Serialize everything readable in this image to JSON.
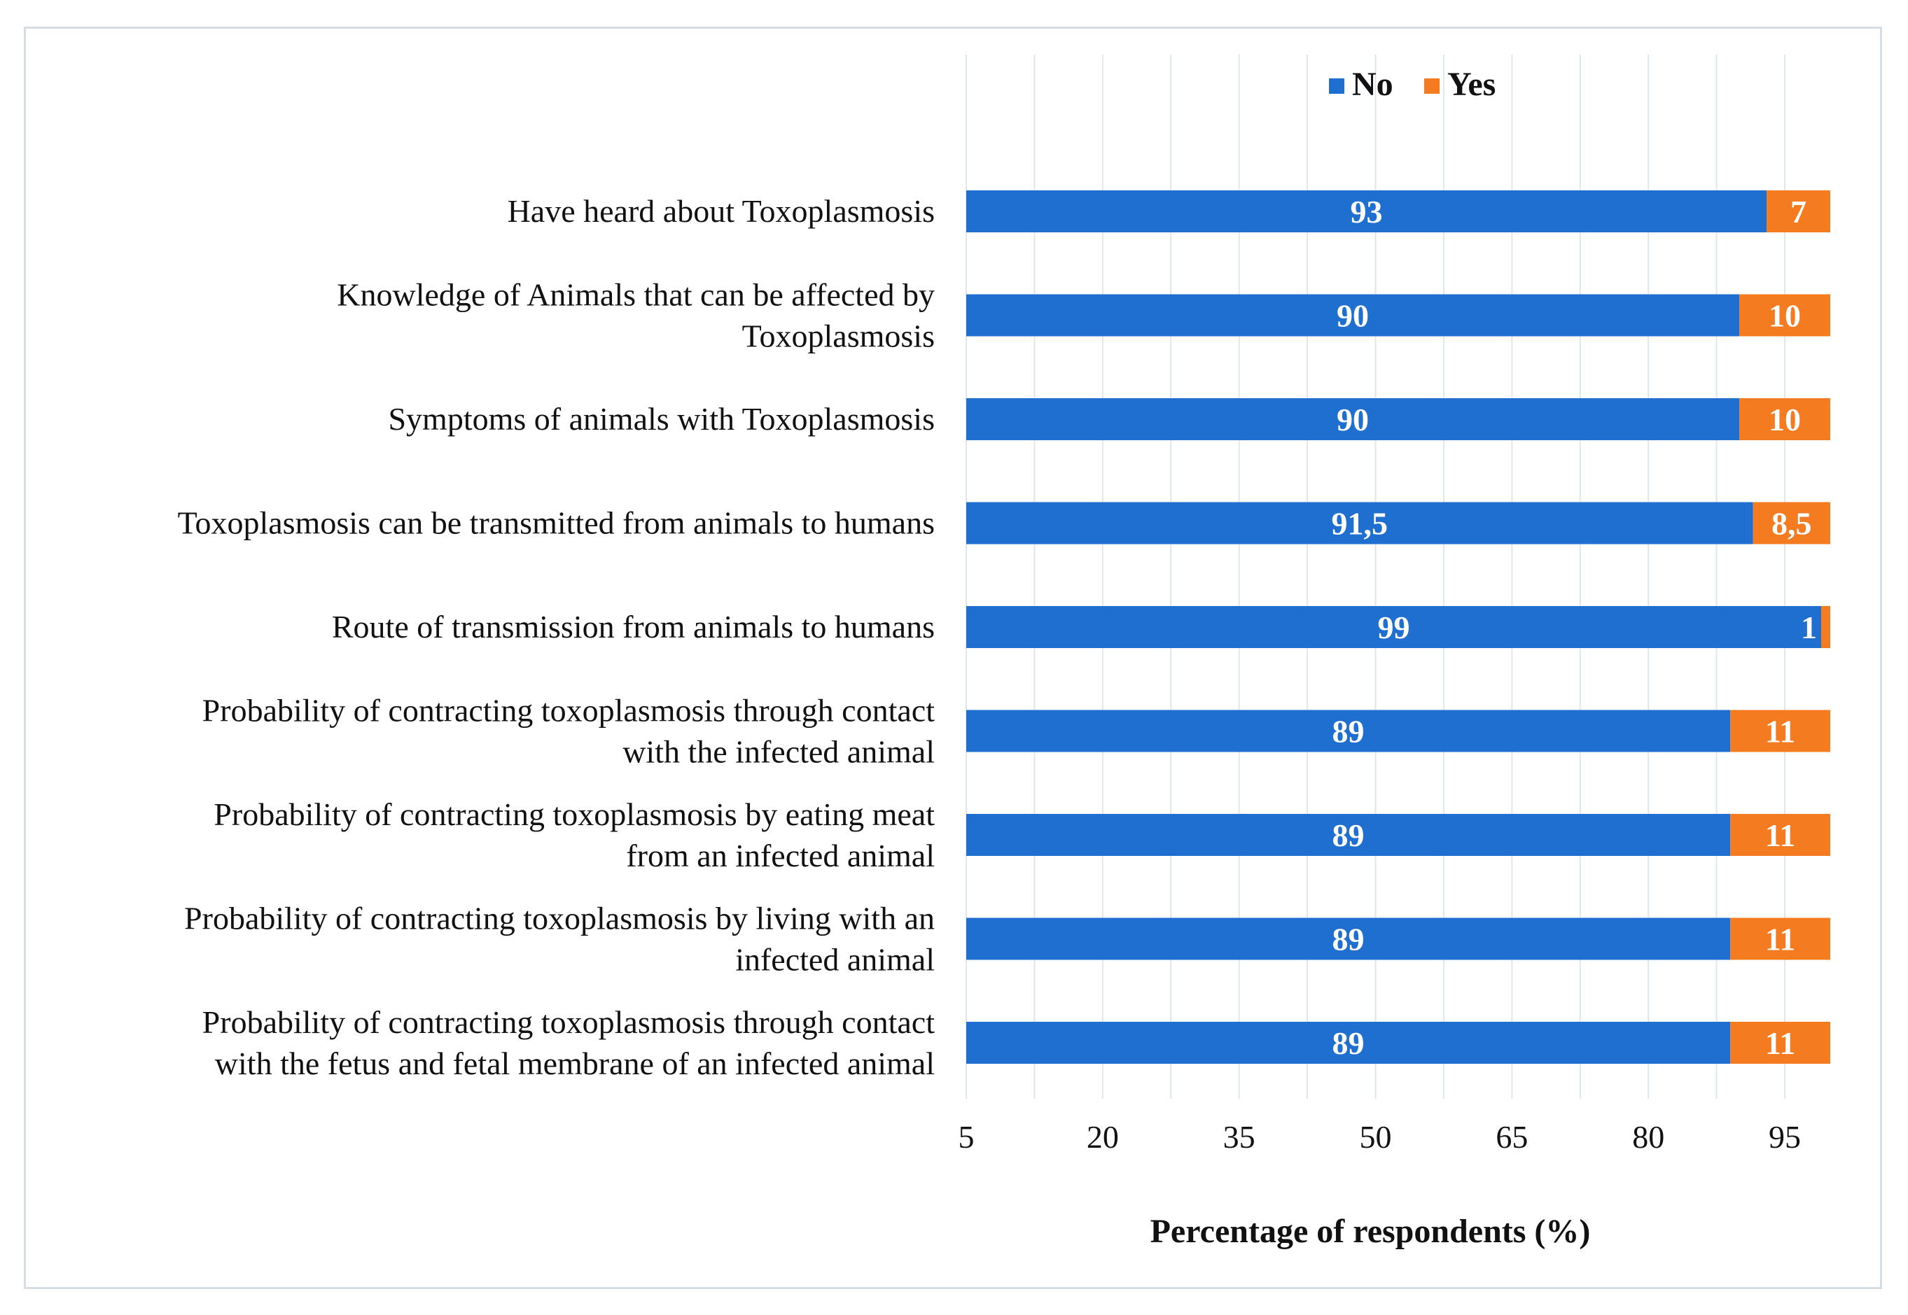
{
  "chart_data": {
    "type": "bar",
    "orientation": "horizontal",
    "stacked": true,
    "categories": [
      "Have heard about Toxoplasmosis",
      "Knowledge of Animals that can be affected by Toxoplasmosis",
      "Symptoms of animals with Toxoplasmosis",
      "Toxoplasmosis can be transmitted from animals to humans",
      "Route of transmission from animals to humans",
      "Probability of contracting toxoplasmosis through contact with the infected animal",
      "Probability of contracting toxoplasmosis by eating meat from an infected animal",
      "Probability of contracting toxoplasmosis by living with an infected animal",
      "Probability of contracting toxoplasmosis through contact with the fetus and fetal membrane of an infected animal"
    ],
    "category_lines": [
      [
        "Have heard about Toxoplasmosis"
      ],
      [
        "Knowledge of Animals that can be affected by",
        "Toxoplasmosis"
      ],
      [
        "Symptoms of animals with Toxoplasmosis"
      ],
      [
        "Toxoplasmosis can be transmitted from animals to humans"
      ],
      [
        "Route of transmission from animals to humans"
      ],
      [
        "Probability of contracting toxoplasmosis through contact",
        "with the infected animal"
      ],
      [
        "Probability of contracting toxoplasmosis by eating meat",
        "from an infected animal"
      ],
      [
        "Probability of contracting toxoplasmosis by living with an",
        "infected animal"
      ],
      [
        "Probability of contracting toxoplasmosis through contact",
        "with the fetus and fetal membrane of an infected animal"
      ]
    ],
    "series": [
      {
        "name": "No",
        "color": "#1f6fd1",
        "values": [
          93,
          90,
          90,
          91.5,
          99,
          89,
          89,
          89,
          89
        ],
        "labels": [
          "93",
          "90",
          "90",
          "91,5",
          "99",
          "89",
          "89",
          "89",
          "89"
        ]
      },
      {
        "name": "Yes",
        "color": "#f47b20",
        "values": [
          7,
          10,
          10,
          8.5,
          1,
          11,
          11,
          11,
          11
        ],
        "labels": [
          "7",
          "10",
          "10",
          "8,5",
          "1",
          "11",
          "11",
          "11",
          "11"
        ]
      }
    ],
    "xlim": [
      5,
      100
    ],
    "xticks": [
      5,
      20,
      35,
      50,
      65,
      80,
      95
    ],
    "xlabel": "Percentage of respondents (%)",
    "ylabel": "",
    "legend_position": "top",
    "grid": "vertical"
  }
}
